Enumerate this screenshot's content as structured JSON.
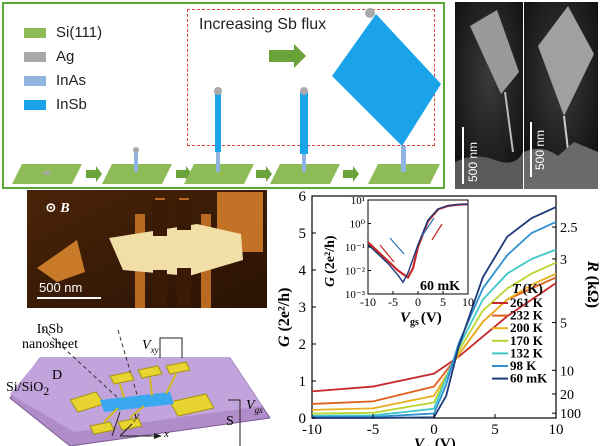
{
  "legend": {
    "items": [
      {
        "label": "Si(111)",
        "color": "#8dbb56"
      },
      {
        "label": "Ag",
        "color": "#a9a9a9"
      },
      {
        "label": "InAs",
        "color": "#8fb4e0"
      },
      {
        "label": "InSb",
        "color": "#1aa3e8"
      }
    ]
  },
  "growth": {
    "flux_label": "Increasing Sb flux"
  },
  "sem": {
    "scale_left": "500 nm",
    "scale_right": "500 nm"
  },
  "afm": {
    "field_symbol": "⊙",
    "field_label": "B",
    "scale": "500 nm"
  },
  "device": {
    "nanosheet_label_line1": "InSb",
    "nanosheet_label_line2": "nanosheet",
    "substrate_label": "Si/SiO",
    "substrate_sub": "2",
    "d_label": "D",
    "s_label": "S",
    "vxy_label": "V",
    "vxy_sub": "xy",
    "vgs_label": "V",
    "vgs_sub": "gs",
    "axis_x": "x",
    "axis_y": "y"
  },
  "chart_data": {
    "type": "line",
    "xlabel": "V",
    "xlabel_sub": "gs",
    "xlabel_unit": "(V)",
    "ylabel": "G",
    "ylabel_unit": "(2e²/h)",
    "ylabel_right": "R",
    "ylabel_right_unit": "(kΩ)",
    "xlim": [
      -10,
      10
    ],
    "ylim": [
      0,
      6
    ],
    "x_ticks": [
      "-10",
      "-5",
      "0",
      "5",
      "10"
    ],
    "y_ticks": [
      "0",
      "1",
      "2",
      "3",
      "4",
      "5",
      "6"
    ],
    "right_ticks": [
      {
        "label": "2.5",
        "g": 5.16
      },
      {
        "label": "3",
        "g": 4.3
      },
      {
        "label": "5",
        "g": 2.58
      },
      {
        "label": "10",
        "g": 1.29
      },
      {
        "label": "20",
        "g": 0.65
      },
      {
        "label": "100",
        "g": 0.13
      }
    ],
    "legend_title": "T",
    "legend_title_unit": "(K)",
    "series": [
      {
        "name": "261 K",
        "color": "#c62828",
        "x": [
          -10,
          -5,
          0,
          2,
          4,
          6,
          8,
          10
        ],
        "y": [
          0.72,
          0.85,
          1.2,
          1.65,
          2.2,
          2.75,
          3.2,
          3.65
        ]
      },
      {
        "name": "232 K",
        "color": "#e06020",
        "x": [
          -10,
          -5,
          0,
          2,
          4,
          6,
          8,
          10
        ],
        "y": [
          0.38,
          0.45,
          0.85,
          1.7,
          2.6,
          3.2,
          3.5,
          3.8
        ]
      },
      {
        "name": "200 K",
        "color": "#e8b020",
        "x": [
          -10,
          -5,
          0,
          2,
          4,
          6,
          8,
          10
        ],
        "y": [
          0.22,
          0.26,
          0.6,
          1.7,
          2.6,
          3.2,
          3.6,
          3.9
        ]
      },
      {
        "name": "170 K",
        "color": "#b8d630",
        "x": [
          -10,
          -5,
          0,
          2,
          4,
          6,
          8,
          10
        ],
        "y": [
          0.12,
          0.14,
          0.42,
          1.8,
          2.9,
          3.5,
          3.9,
          4.2
        ]
      },
      {
        "name": "132 K",
        "color": "#40c8c8",
        "x": [
          -10,
          -5,
          0,
          2,
          4,
          6,
          8,
          10
        ],
        "y": [
          0.06,
          0.07,
          0.25,
          1.9,
          3.2,
          3.9,
          4.3,
          4.55
        ]
      },
      {
        "name": "98 K",
        "color": "#2f8fd0",
        "x": [
          -10,
          -5,
          0,
          1,
          2,
          4,
          6,
          8,
          10
        ],
        "y": [
          0.03,
          0.03,
          0.12,
          0.9,
          2.0,
          3.5,
          4.4,
          5.0,
          5.3
        ]
      },
      {
        "name": "60 mK",
        "color": "#1e3a7a",
        "x": [
          -10,
          -5,
          0,
          1,
          2,
          4,
          6,
          8,
          10
        ],
        "y": [
          0.0,
          0.0,
          0.02,
          0.6,
          1.9,
          3.8,
          4.9,
          5.4,
          5.7
        ]
      }
    ],
    "inset": {
      "xlabel": "V",
      "xlabel_sub": "gs",
      "xlabel_unit": "(V)",
      "ylabel": "G",
      "ylabel_unit": "(2e²/h)",
      "xlim": [
        -10,
        10
      ],
      "x_ticks": [
        "-10",
        "-5",
        "0",
        "5",
        "10"
      ],
      "y_ticks": [
        "10¹",
        "10⁰",
        "10⁻¹",
        "10⁻²",
        "10⁻³"
      ],
      "label": "60 mK",
      "sweep_up": {
        "color": "#c62828",
        "x": [
          -10,
          -8,
          -6,
          -4,
          -2,
          -1,
          0,
          2,
          4,
          6,
          8,
          10
        ],
        "logy": [
          -0.8,
          -1.2,
          -1.6,
          -2.0,
          -2.3,
          -1.9,
          -1.0,
          0.1,
          0.6,
          0.75,
          0.8,
          0.82
        ]
      },
      "sweep_down": {
        "color": "#1e3a7a",
        "x": [
          -10,
          -8,
          -6,
          -4,
          -3,
          -2,
          0,
          2,
          4,
          6,
          8,
          10
        ],
        "logy": [
          -0.9,
          -1.3,
          -1.7,
          -2.2,
          -2.5,
          -2.1,
          -0.9,
          0.15,
          0.62,
          0.76,
          0.81,
          0.82
        ]
      }
    }
  }
}
